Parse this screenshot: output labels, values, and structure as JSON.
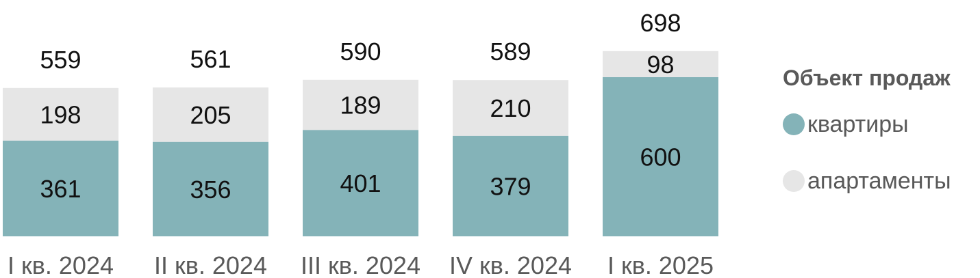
{
  "chart_data": {
    "type": "bar",
    "stacked": true,
    "categories": [
      "I кв. 2024",
      "II кв. 2024",
      "III кв. 2024",
      "IV кв. 2024",
      "I кв. 2025"
    ],
    "series": [
      {
        "name": "квартиры",
        "values": [
          361,
          356,
          401,
          379,
          600
        ],
        "color": "#84b3b8"
      },
      {
        "name": "апартаменты",
        "values": [
          198,
          205,
          189,
          210,
          98
        ],
        "color": "#e6e6e6"
      }
    ],
    "totals": [
      559,
      561,
      590,
      589,
      698
    ],
    "legend": {
      "title": "Объект продаж",
      "position": "right"
    },
    "grid": false
  }
}
